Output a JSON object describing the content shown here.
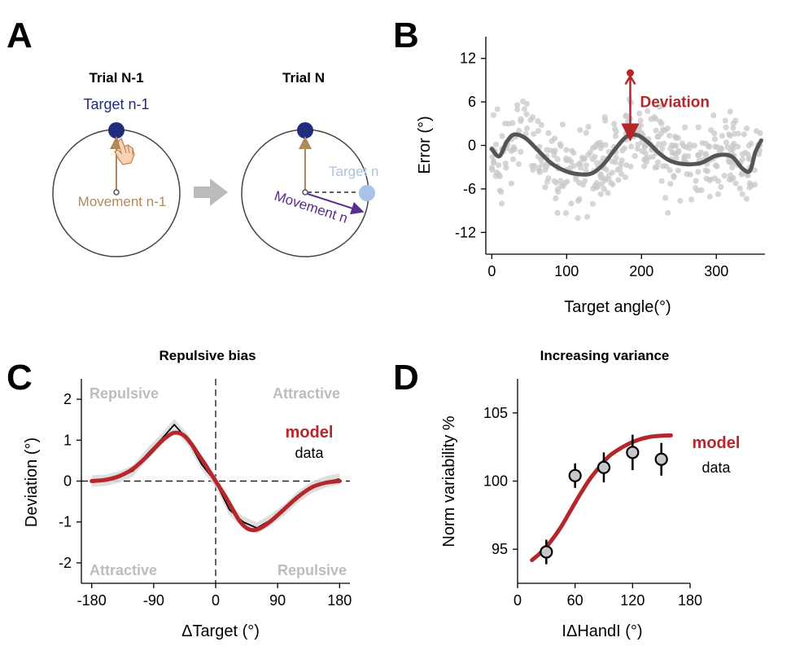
{
  "panels": {
    "A": {
      "letter": "A",
      "trial_prev_title": "Trial N-1",
      "trial_curr_title": "Trial N",
      "target_prev_label": "Target n-1",
      "movement_prev_label": "Movement n-1",
      "target_curr_label": "Target n",
      "movement_curr_label": "Movement n",
      "colors": {
        "target_prev": "#1f2d7a",
        "target_curr": "#a9c3e8",
        "movement_prev": "#b08a5f",
        "movement_curr": "#5a2d8a",
        "transition_arrow": "#bbbbbb"
      },
      "icons": [
        "hand-pointer-icon",
        "transition-arrow-icon"
      ]
    },
    "B": {
      "letter": "B",
      "chart_data": {
        "type": "scatter",
        "title": "",
        "xlabel": "Target angle(°)",
        "ylabel": "Error (°)",
        "xlim": [
          -8,
          365
        ],
        "ylim": [
          -15,
          15
        ],
        "xticks": [
          0,
          100,
          200,
          300
        ],
        "yticks": [
          12,
          6,
          0,
          -6,
          -12
        ],
        "annotation": "Deviation",
        "annotation_x": 185,
        "annotation_top": 10,
        "annotation_bottom": 1.2,
        "fit_curve": {
          "x": [
            0,
            10,
            20,
            30,
            45,
            60,
            80,
            100,
            120,
            135,
            150,
            165,
            180,
            195,
            210,
            225,
            240,
            260,
            280,
            300,
            320,
            335,
            345,
            352,
            360
          ],
          "y": [
            -0.5,
            -1.5,
            0.5,
            1.5,
            1.0,
            -0.5,
            -2.5,
            -3.6,
            -4.0,
            -3.8,
            -2.5,
            -0.5,
            1.2,
            1.4,
            0.3,
            -1.2,
            -2.2,
            -2.6,
            -2.4,
            -1.4,
            -1.5,
            -3.2,
            -3.5,
            -1.0,
            0.7
          ]
        },
        "scatter_n": 420,
        "colors": {
          "fit": "#555555",
          "points": "#c8c8c8",
          "annotation": "#b5272b"
        }
      }
    },
    "C": {
      "letter": "C",
      "chart_data": {
        "type": "line",
        "title": "Repulsive bias",
        "xlabel": "ΔTarget (°)",
        "ylabel": "Deviation (°)",
        "xlim": [
          -195,
          195
        ],
        "ylim": [
          -2.5,
          2.5
        ],
        "xticks": [
          -180,
          -90,
          0,
          90,
          180
        ],
        "yticks": [
          2,
          1,
          0,
          -1,
          -2
        ],
        "region_labels": {
          "top_left": "Repulsive",
          "top_right": "Attractive",
          "bottom_left": "Attractive",
          "bottom_right": "Repulsive"
        },
        "series": [
          {
            "name": "model",
            "color": "#b5272b",
            "x": [
              -180,
              -160,
              -140,
              -120,
              -100,
              -80,
              -65,
              -55,
              -45,
              -35,
              -25,
              -15,
              0,
              15,
              25,
              35,
              45,
              55,
              65,
              80,
              100,
              120,
              140,
              160,
              180
            ],
            "y": [
              0,
              0.03,
              0.12,
              0.3,
              0.6,
              0.95,
              1.15,
              1.18,
              1.1,
              0.9,
              0.65,
              0.4,
              0,
              -0.4,
              -0.7,
              -0.98,
              -1.15,
              -1.2,
              -1.15,
              -0.98,
              -0.68,
              -0.38,
              -0.15,
              -0.04,
              0
            ]
          },
          {
            "name": "data",
            "color": "#000000",
            "x": [
              -180,
              -160,
              -140,
              -120,
              -100,
              -80,
              -60,
              -40,
              -20,
              0,
              20,
              40,
              60,
              80,
              100,
              120,
              140,
              160,
              180
            ],
            "y": [
              0.0,
              0.02,
              0.1,
              0.25,
              0.65,
              1.0,
              1.38,
              1.0,
              0.4,
              -0.02,
              -0.7,
              -1.0,
              -1.15,
              -0.95,
              -0.7,
              -0.38,
              -0.15,
              -0.02,
              0.05
            ]
          }
        ]
      }
    },
    "D": {
      "letter": "D",
      "chart_data": {
        "type": "line",
        "title": "Increasing variance",
        "xlabel": "IΔHandI (°)",
        "ylabel": "Norm variability %",
        "xlim": [
          0,
          180
        ],
        "ylim": [
          92.5,
          107.5
        ],
        "xticks": [
          0,
          60,
          120,
          180
        ],
        "yticks": [
          105,
          100,
          95
        ],
        "series": [
          {
            "name": "model",
            "color": "#b5272b",
            "x": [
              15,
              25,
              35,
              45,
              55,
              65,
              75,
              85,
              95,
              105,
              115,
              125,
              135,
              145,
              160
            ],
            "y": [
              94.2,
              94.8,
              95.6,
              96.6,
              97.8,
              99.0,
              100.1,
              101.0,
              101.8,
              102.3,
              102.7,
              103.0,
              103.2,
              103.3,
              103.35
            ]
          },
          {
            "name": "data",
            "color": "#000000",
            "x": [
              30,
              60,
              90,
              120,
              150
            ],
            "y": [
              94.8,
              100.4,
              101.0,
              102.1,
              101.6
            ],
            "err": [
              0.9,
              0.9,
              1.1,
              1.3,
              1.2
            ]
          }
        ],
        "colors": {
          "marker_fill": "#c8c8c8"
        }
      }
    }
  }
}
